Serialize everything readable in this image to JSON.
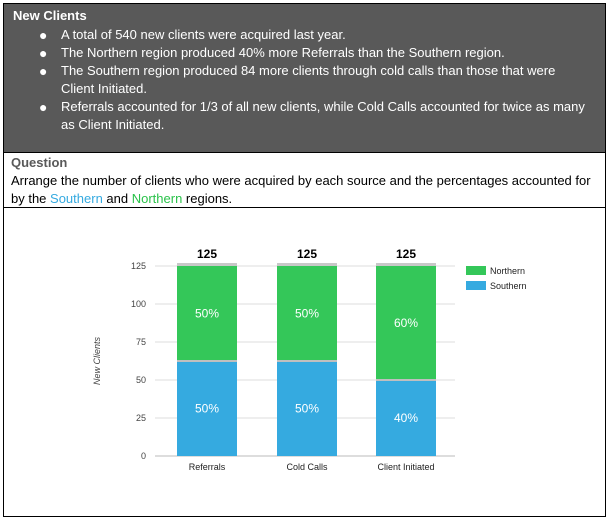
{
  "info": {
    "title": "New Clients",
    "bullets": [
      "A total of 540 new clients were acquired last year.",
      "The Northern region produced 40% more Referrals than the Southern region.",
      "The Southern region produced 84 more clients through cold calls than those that were Client Initiated.",
      "Referrals accounted for 1/3 of all new clients, while Cold Calls accounted for twice as many as Client Initiated."
    ]
  },
  "question": {
    "title": "Question",
    "text_before": "Arrange the number of clients who were acquired by each source and the percentages accounted for by the ",
    "southern": "Southern",
    "and_word": " and ",
    "northern": "Northern",
    "text_after": " regions."
  },
  "colors": {
    "northern": "#34c759",
    "southern": "#35aae0",
    "bar_top": "#c8c8c8",
    "gridline": "#dddddd",
    "separator": "#bfbfbf"
  },
  "chart_data": {
    "type": "bar",
    "stacked": true,
    "categories": [
      "Referrals",
      "Cold Calls",
      "Client Initiated"
    ],
    "series": [
      {
        "name": "Southern",
        "values": [
          62.5,
          62.5,
          50
        ],
        "labels": [
          "50%",
          "50%",
          "40%"
        ]
      },
      {
        "name": "Northern",
        "values": [
          62.5,
          62.5,
          75
        ],
        "labels": [
          "50%",
          "50%",
          "60%"
        ]
      }
    ],
    "totals": [
      "125",
      "125",
      "125"
    ],
    "ylabel": "New Clients",
    "xlabel": "",
    "ylim": [
      0,
      125
    ],
    "yticks": [
      0,
      25,
      50,
      75,
      100,
      125
    ],
    "grid": true,
    "legend": "right",
    "legend_order": [
      "Northern",
      "Southern"
    ]
  }
}
